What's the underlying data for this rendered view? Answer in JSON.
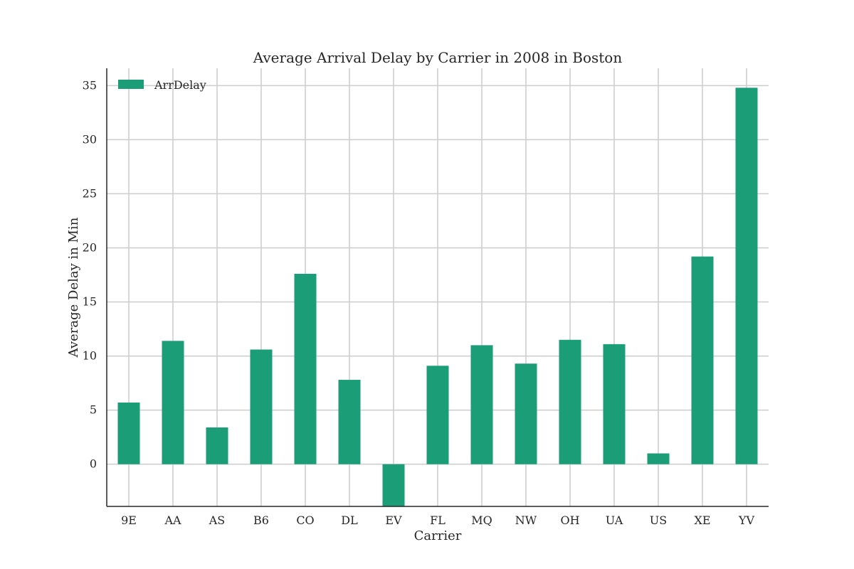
{
  "chart_data": {
    "type": "bar",
    "title": "Average Arrival Delay by Carrier in 2008 in Boston",
    "xlabel": "Carrier",
    "ylabel": "Average Delay in Min",
    "categories": [
      "9E",
      "AA",
      "AS",
      "B6",
      "CO",
      "DL",
      "EV",
      "FL",
      "MQ",
      "NW",
      "OH",
      "UA",
      "US",
      "XE",
      "YV"
    ],
    "series": [
      {
        "name": "ArrDelay",
        "color": "#1b9e77",
        "values": [
          5.7,
          11.4,
          3.4,
          10.6,
          17.6,
          7.8,
          -4.0,
          9.1,
          11.0,
          9.3,
          11.5,
          11.1,
          1.0,
          19.2,
          34.8
        ]
      }
    ],
    "ylim": [
      -3.9,
      36.6
    ],
    "yticks": [
      0,
      5,
      10,
      15,
      20,
      25,
      30,
      35
    ],
    "grid": true,
    "legend_position": "top-left"
  }
}
